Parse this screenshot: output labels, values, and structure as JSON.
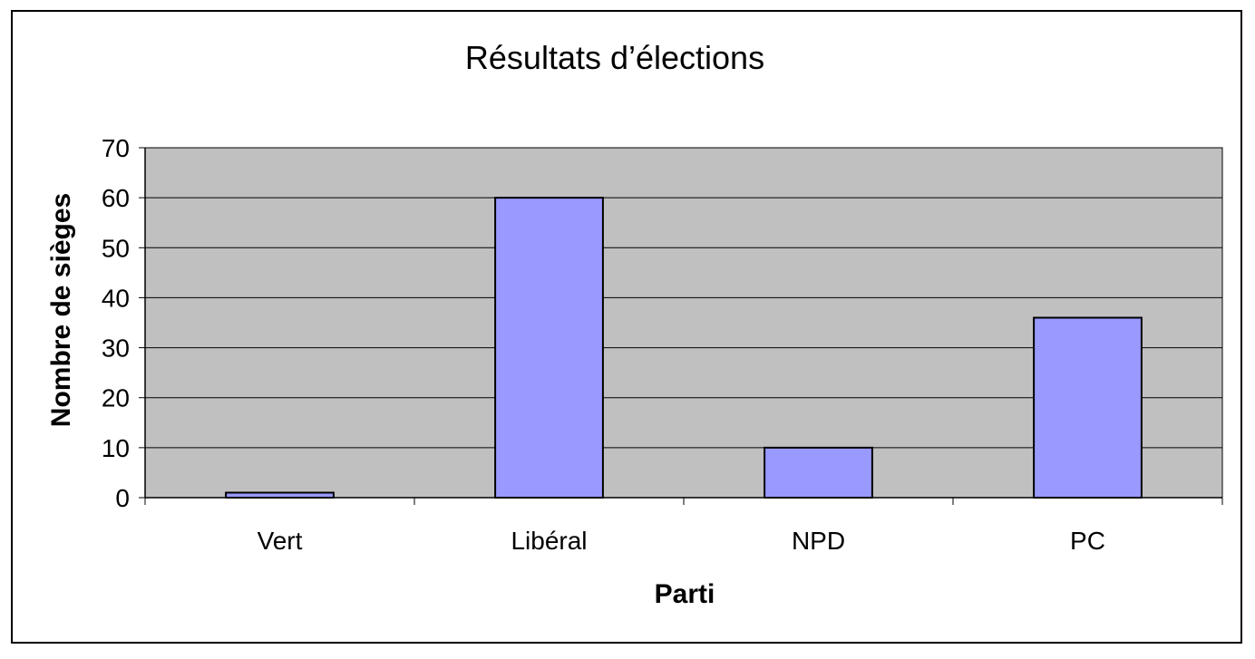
{
  "chart_data": {
    "type": "bar",
    "title": "Résultats d’élections",
    "xlabel": "Parti",
    "ylabel": "Nombre de sièges",
    "categories": [
      "Vert",
      "Libéral",
      "NPD",
      "PC"
    ],
    "values": [
      1,
      60,
      10,
      36
    ],
    "ylim": [
      0,
      70
    ],
    "yticks": [
      "0",
      "10",
      "20",
      "30",
      "40",
      "50",
      "60",
      "70"
    ],
    "grid": true,
    "legend": "none",
    "colors": {
      "bar_fill": "#9999ff",
      "bar_stroke": "#000000",
      "plot_background": "#c0c0c0",
      "gridline": "#000000",
      "frame": "#000000"
    }
  }
}
